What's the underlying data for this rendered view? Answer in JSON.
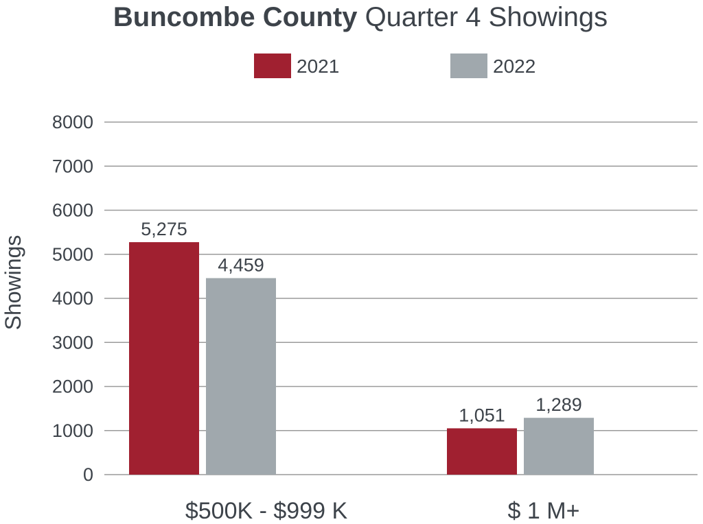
{
  "chart_data": {
    "type": "bar",
    "title_bold": "Buncombe County",
    "title_rest": " Quarter 4 Showings",
    "ylabel": "Showings",
    "xlabel": "",
    "categories": [
      "$500K - $999 K",
      "$ 1 M+"
    ],
    "series": [
      {
        "name": "2021",
        "color": "#a02030",
        "values": [
          5275,
          1051
        ],
        "labels": [
          "5,275",
          "1,051"
        ]
      },
      {
        "name": "2022",
        "color": "#a0a8ad",
        "values": [
          4459,
          1289
        ],
        "labels": [
          "4,459",
          "1,289"
        ]
      }
    ],
    "yticks": [
      "0",
      "1000",
      "2000",
      "3000",
      "4000",
      "5000",
      "6000",
      "7000",
      "8000"
    ],
    "ylim": [
      0,
      8000
    ],
    "grid": true,
    "legend_position": "top-center"
  }
}
